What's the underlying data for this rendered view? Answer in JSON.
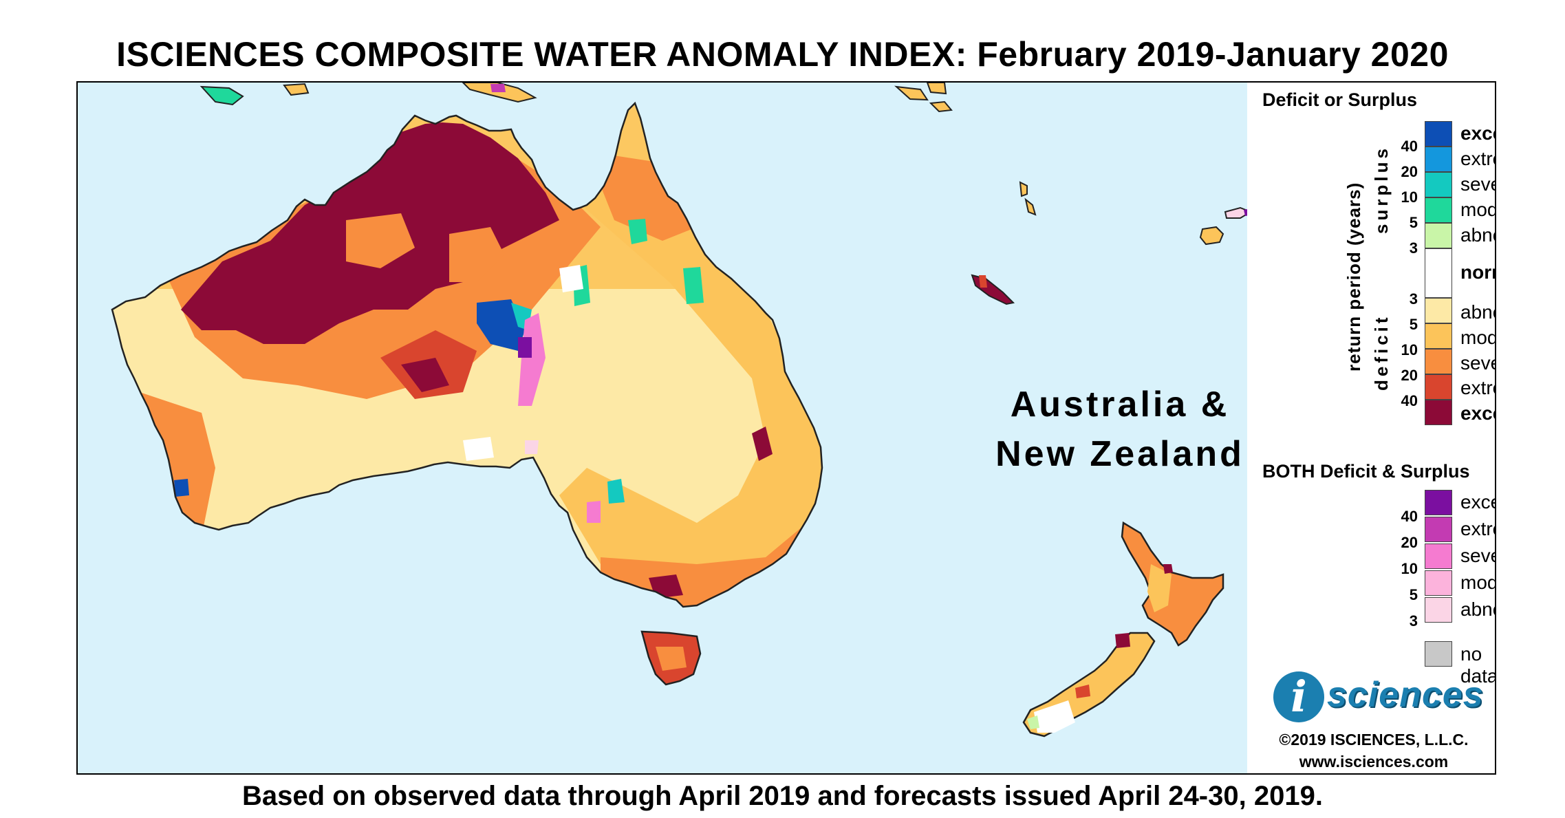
{
  "title": "ISCIENCES COMPOSITE WATER ANOMALY INDEX: February 2019-January 2020",
  "footer": "Based on observed data through April 2019 and forecasts issued April 24-30, 2019.",
  "region_label_line1": "Australia &",
  "region_label_line2": "New Zealand",
  "colors": {
    "ocean": "#d9f2fb",
    "normal": "#ffffff",
    "deficit": [
      "#fde9a6",
      "#fcc45a",
      "#f88e3f",
      "#d9452e",
      "#8c0a37"
    ],
    "surplus": [
      "#c9f5a8",
      "#1fd89b",
      "#14c9c0",
      "#1497dd",
      "#0d4fb5"
    ],
    "both": [
      "#fbd5e6",
      "#fcb3dc",
      "#f57bd0",
      "#c33bb2",
      "#7b0fa0"
    ],
    "no_data": "#c8c8c8"
  },
  "legend": {
    "deficit_surplus_title": "Deficit or Surplus",
    "axis_label": "return period (years)",
    "surplus_label": "surplus",
    "deficit_label": "deficit",
    "surplus_classes": [
      "exceptional",
      "extreme",
      "severe",
      "moderate",
      "abnormal"
    ],
    "normal_label": "normal",
    "deficit_classes": [
      "abnormal",
      "moderate",
      "severe",
      "extreme",
      "exceptional"
    ],
    "surplus_ticks": [
      "40",
      "20",
      "10",
      "5",
      "3"
    ],
    "deficit_ticks": [
      "3",
      "5",
      "10",
      "20",
      "40"
    ],
    "both_title": "BOTH Deficit & Surplus",
    "both_classes": [
      "exceptional",
      "extreme",
      "severe",
      "moderate",
      "abnormal"
    ],
    "both_ticks": [
      "40",
      "20",
      "10",
      "5",
      "3"
    ],
    "no_data_label": "no data"
  },
  "logo": {
    "mark": "i",
    "wordmark": "sciences",
    "copyright": "©2019 ISCIENCES, L.L.C.",
    "url": "www.isciences.com"
  }
}
